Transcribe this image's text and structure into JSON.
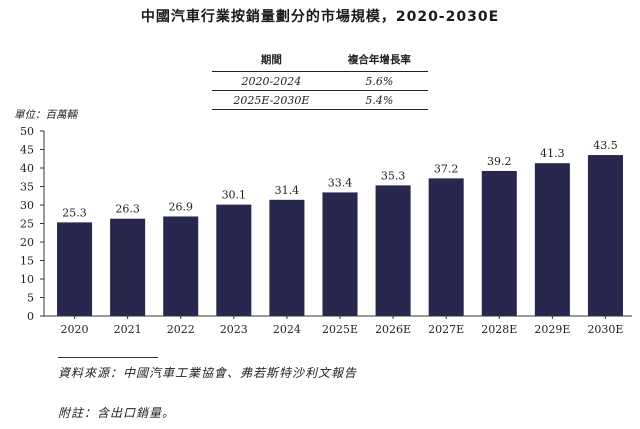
{
  "title": "中國汽車行業按銷量劃分的市場規模，2020-2030E",
  "cagr_table": {
    "headers": [
      "期間",
      "複合年增長率"
    ],
    "rows": [
      {
        "period": "2020-2024",
        "rate": "5.6%"
      },
      {
        "period": "2025E-2030E",
        "rate": "5.4%"
      }
    ]
  },
  "chart_data": {
    "type": "bar",
    "unit_label": "單位：百萬輛",
    "categories": [
      "2020",
      "2021",
      "2022",
      "2023",
      "2024",
      "2025E",
      "2026E",
      "2027E",
      "2028E",
      "2029E",
      "2030E"
    ],
    "values": [
      25.3,
      26.3,
      26.9,
      30.1,
      31.4,
      33.4,
      35.3,
      37.2,
      39.2,
      41.3,
      43.5
    ],
    "value_labels": [
      "25.3",
      "26.3",
      "26.9",
      "30.1",
      "31.4",
      "33.4",
      "35.3",
      "37.2",
      "39.2",
      "41.3",
      "43.5"
    ],
    "yticks": [
      "0",
      "5",
      "10",
      "15",
      "20",
      "25",
      "30",
      "35",
      "40",
      "45",
      "50"
    ],
    "ylim": [
      0,
      50
    ],
    "bar_color": "#28284f",
    "grid": false
  },
  "footer": {
    "source": "資料來源：中國汽車工業協會、弗若斯特沙利文報告",
    "note": "附註：含出口銷量。"
  }
}
